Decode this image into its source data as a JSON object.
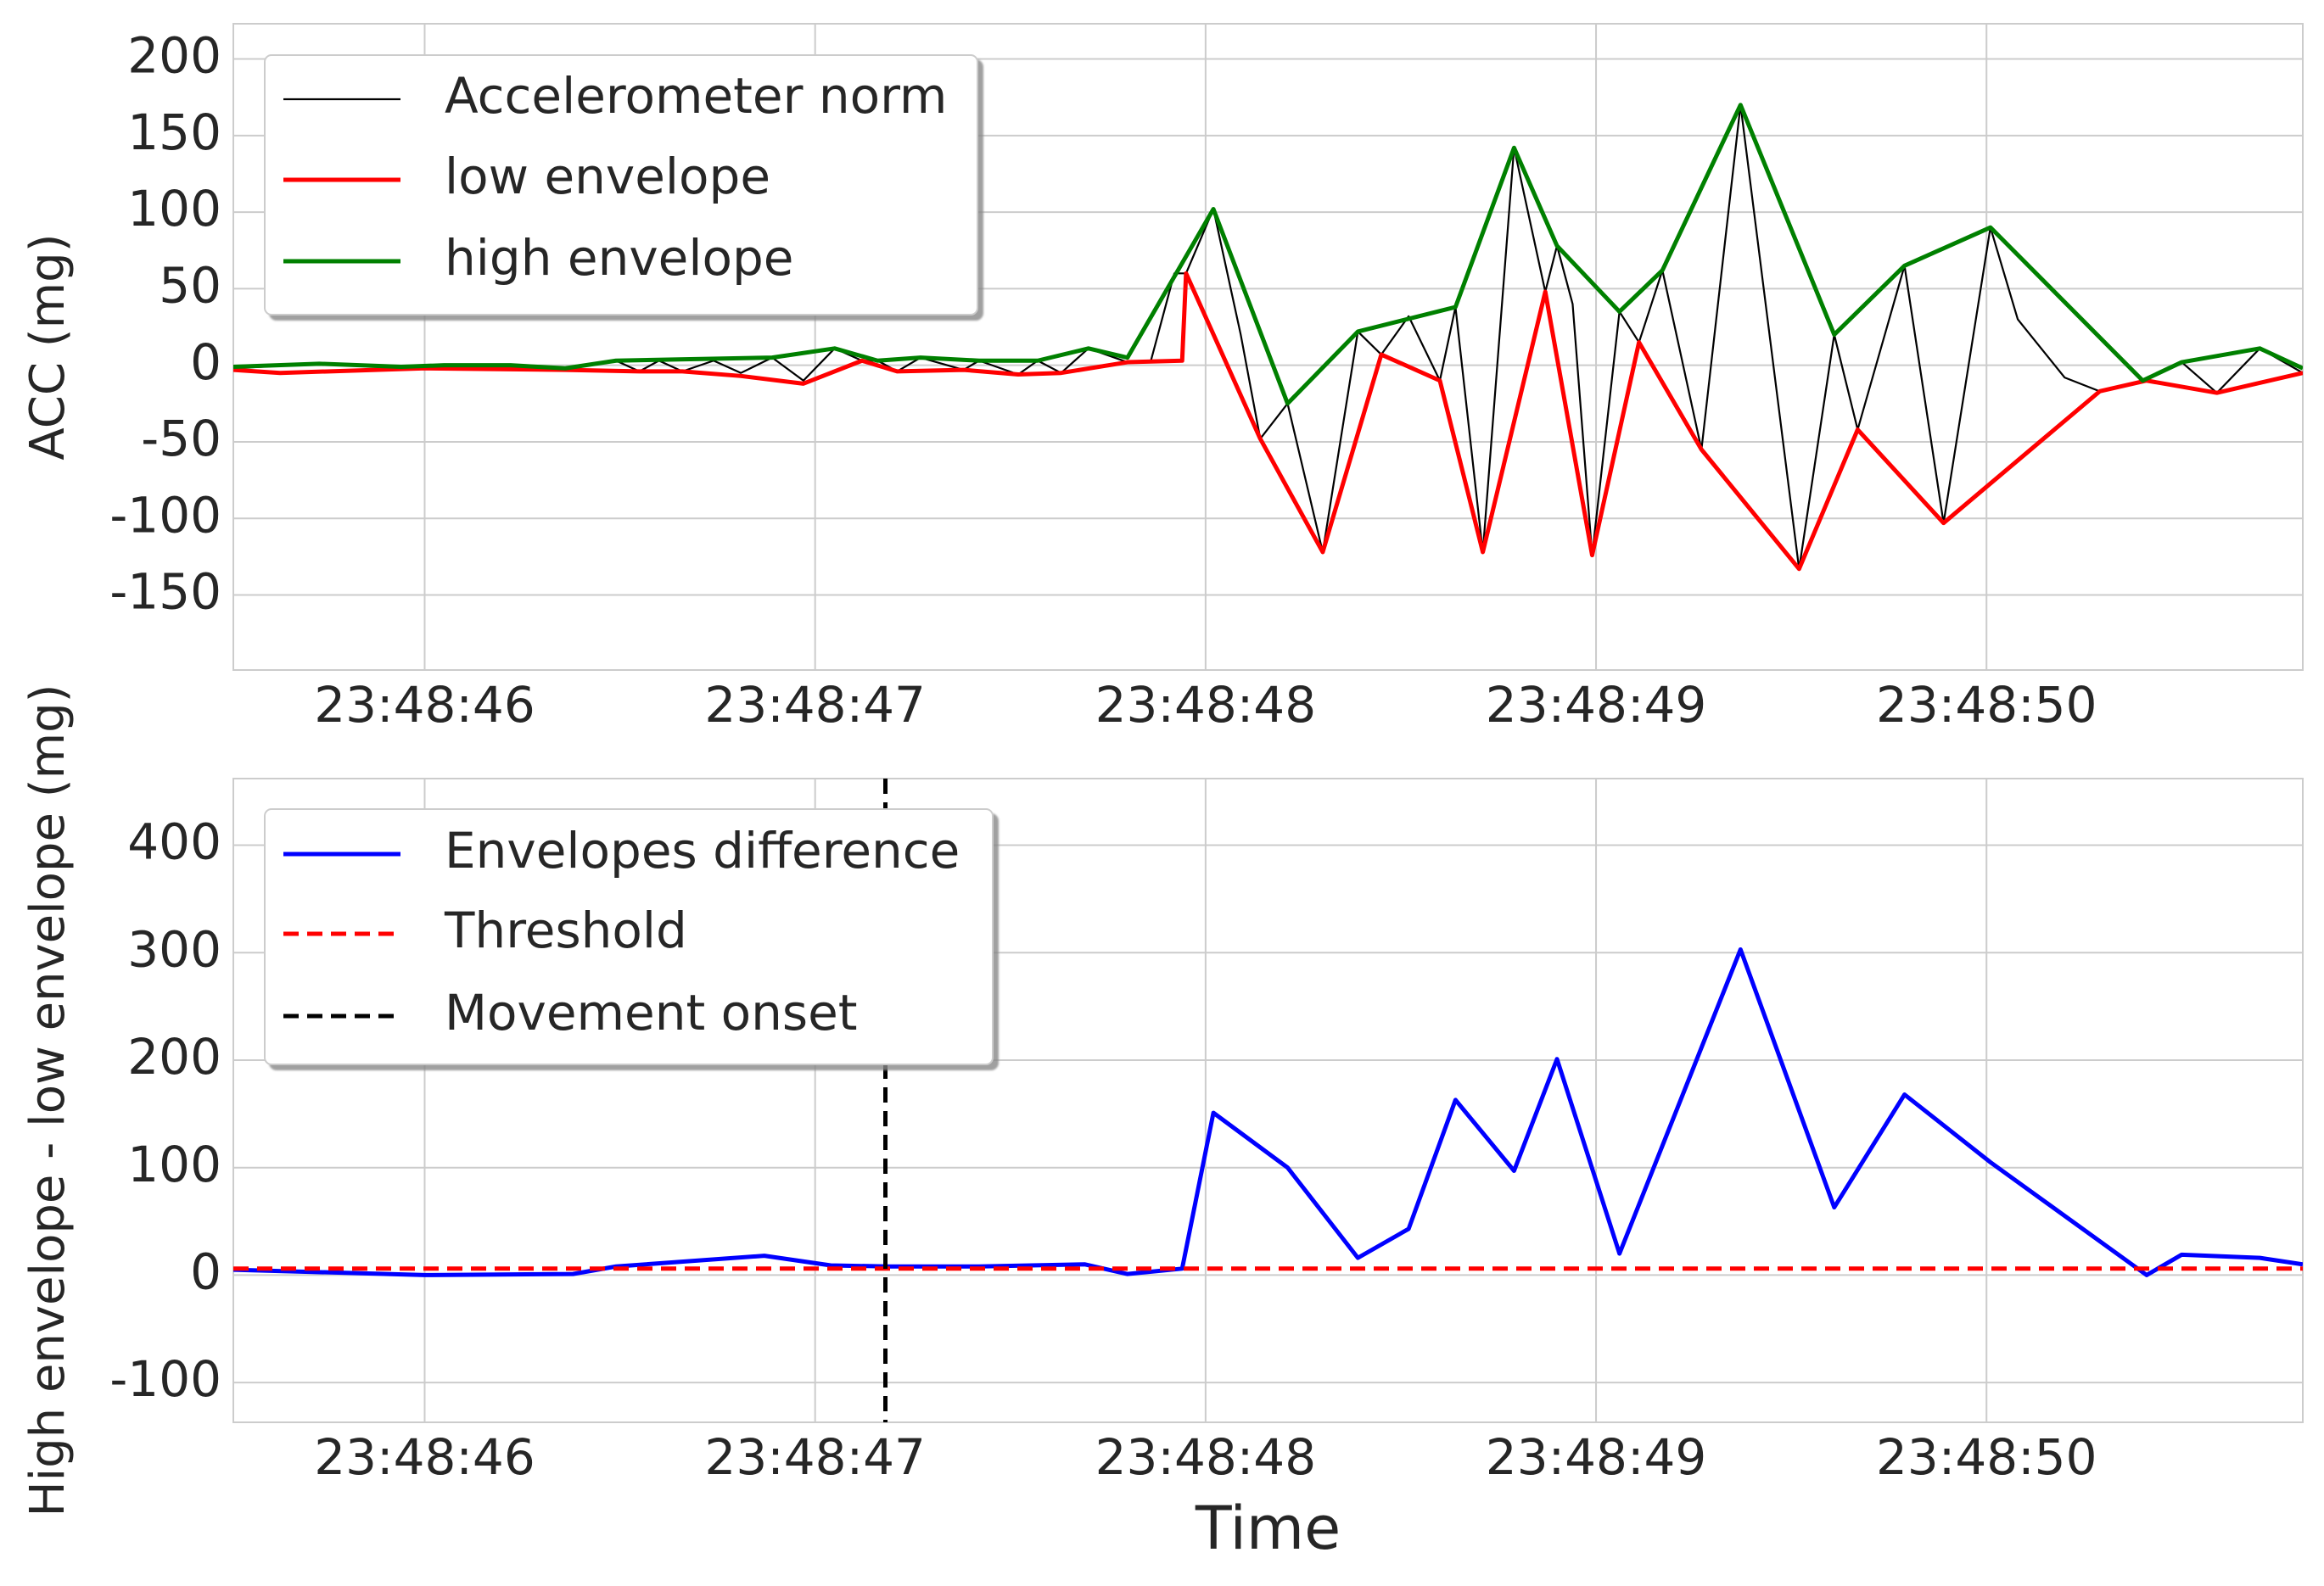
{
  "chart_data": [
    {
      "type": "line",
      "ylabel": "ACC (mg)",
      "xlim": [
        45.51,
        50.81
      ],
      "ylim": [
        -199,
        223
      ],
      "xticks": [
        {
          "value": 46,
          "label": "23:48:46"
        },
        {
          "value": 47,
          "label": "23:48:47"
        },
        {
          "value": 48,
          "label": "23:48:48"
        },
        {
          "value": 49,
          "label": "23:48:49"
        },
        {
          "value": 50,
          "label": "23:48:50"
        }
      ],
      "yticks": [
        -150,
        -100,
        -50,
        0,
        50,
        100,
        150,
        200
      ],
      "grid": true,
      "legend": "upper left",
      "series": [
        {
          "name": "Accelerometer norm",
          "color": "#000000",
          "x": [
            45.51,
            45.73,
            46.0,
            46.22,
            46.36,
            46.49,
            46.55,
            46.6,
            46.66,
            46.74,
            46.81,
            46.89,
            46.97,
            47.05,
            47.12,
            47.16,
            47.21,
            47.27,
            47.38,
            47.42,
            47.52,
            47.57,
            47.63,
            47.7,
            47.8,
            47.86,
            47.92,
            47.95,
            48.02,
            48.09,
            48.14,
            48.21,
            48.3,
            48.39,
            48.45,
            48.52,
            48.6,
            48.64,
            48.71,
            48.79,
            48.87,
            48.9,
            48.94,
            48.99,
            49.06,
            49.11,
            49.17,
            49.27,
            49.37,
            49.52,
            49.61,
            49.67,
            49.79,
            49.89,
            50.01,
            50.08,
            50.2,
            50.29,
            50.4,
            50.5,
            50.59,
            50.7,
            50.81
          ],
          "values": [
            -2,
            1,
            -2,
            0,
            -2,
            3,
            -4,
            3,
            -4,
            3,
            -5,
            5,
            -10,
            11,
            3,
            3,
            -4,
            5,
            -3,
            3,
            -6,
            3,
            -5,
            11,
            2,
            3,
            60,
            60,
            102,
            20,
            -48,
            -25,
            -122,
            22,
            7,
            32,
            -10,
            38,
            -122,
            142,
            48,
            78,
            40,
            -124,
            35,
            15,
            62,
            -55,
            170,
            -133,
            20,
            -42,
            65,
            -103,
            90,
            30,
            -8,
            -17,
            -10,
            2,
            -18,
            11,
            -5
          ]
        },
        {
          "name": "low envelope",
          "color": "#ff0000",
          "x": [
            45.51,
            45.63,
            46.0,
            46.36,
            46.55,
            46.66,
            46.81,
            46.97,
            47.12,
            47.21,
            47.38,
            47.52,
            47.63,
            47.8,
            47.94,
            47.95,
            48.14,
            48.3,
            48.45,
            48.6,
            48.71,
            48.87,
            48.99,
            49.11,
            49.27,
            49.52,
            49.67,
            49.89,
            50.29,
            50.41,
            50.59,
            50.81
          ],
          "values": [
            -3,
            -5,
            -2,
            -3,
            -4,
            -4,
            -7,
            -12,
            3,
            -4,
            -3,
            -6,
            -5,
            2,
            3,
            60,
            -48,
            -122,
            7,
            -10,
            -122,
            48,
            -124,
            15,
            -55,
            -133,
            -42,
            -103,
            -17,
            -10,
            -18,
            -5
          ]
        },
        {
          "name": "high envelope",
          "color": "#008000",
          "x": [
            45.51,
            45.73,
            45.94,
            46.05,
            46.22,
            46.36,
            46.49,
            46.89,
            47.05,
            47.16,
            47.27,
            47.42,
            47.57,
            47.7,
            47.8,
            48.02,
            48.21,
            48.39,
            48.64,
            48.79,
            48.9,
            49.06,
            49.17,
            49.37,
            49.61,
            49.79,
            50.01,
            50.4,
            50.5,
            50.7,
            50.81
          ],
          "values": [
            -1,
            1,
            -1,
            0,
            0,
            -2,
            3,
            5,
            11,
            3,
            5,
            3,
            3,
            11,
            5,
            102,
            -25,
            22,
            38,
            142,
            78,
            35,
            62,
            170,
            20,
            65,
            90,
            -10,
            2,
            11,
            -2
          ]
        }
      ]
    },
    {
      "type": "line",
      "ylabel": "High envelope - low envelope (mg)",
      "xlabel": "Time",
      "xlim": [
        45.51,
        50.81
      ],
      "ylim": [
        -137,
        462
      ],
      "xticks": [
        {
          "value": 46,
          "label": "23:48:46"
        },
        {
          "value": 47,
          "label": "23:48:47"
        },
        {
          "value": 48,
          "label": "23:48:48"
        },
        {
          "value": 49,
          "label": "23:48:49"
        },
        {
          "value": 50,
          "label": "23:48:50"
        }
      ],
      "yticks": [
        -100,
        0,
        100,
        200,
        300,
        400
      ],
      "grid": true,
      "legend": "upper left",
      "series": [
        {
          "name": "Envelopes difference",
          "color": "#0000ff",
          "x": [
            45.51,
            46.0,
            46.38,
            46.49,
            46.87,
            47.04,
            47.19,
            47.42,
            47.69,
            47.8,
            47.94,
            48.02,
            48.21,
            48.39,
            48.52,
            48.64,
            48.79,
            48.9,
            49.06,
            49.37,
            49.61,
            49.79,
            50.01,
            50.41,
            50.5,
            50.7,
            50.81
          ],
          "values": [
            5,
            0,
            1,
            8,
            18,
            9,
            8,
            8,
            10,
            1,
            6,
            151,
            100,
            16,
            43,
            163,
            97,
            201,
            20,
            303,
            63,
            168,
            105,
            0,
            19,
            16,
            10
          ]
        },
        {
          "name": "Threshold",
          "color": "#ff0000",
          "dashed": true,
          "y": 6
        },
        {
          "name": "Movement onset",
          "color": "#000000",
          "dashed": true,
          "x": 47.18
        }
      ]
    }
  ]
}
